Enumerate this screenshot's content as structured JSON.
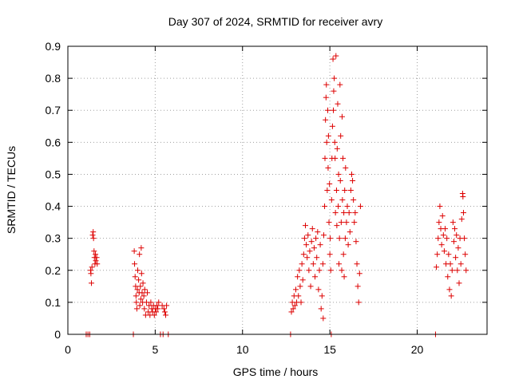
{
  "chart_data": {
    "type": "scatter",
    "title": "Day 307 of 2024, SRMTID for receiver avry",
    "xlabel": "GPS time / hours",
    "ylabel": "SRMTID / TECUs",
    "xlim": [
      0,
      24
    ],
    "ylim": [
      0,
      0.9
    ],
    "xticks": [
      0,
      5,
      10,
      15,
      20
    ],
    "xtick_labels": [
      "0",
      "5",
      "10",
      "15",
      "20"
    ],
    "yticks": [
      0,
      0.1,
      0.2,
      0.3,
      0.4,
      0.5,
      0.6,
      0.7,
      0.8,
      0.9
    ],
    "ytick_labels": [
      "0",
      "0.1",
      "0.2",
      "0.3",
      "0.4",
      "0.5",
      "0.6",
      "0.7",
      "0.8",
      "0.9"
    ],
    "grid": true,
    "marker": "+",
    "color": "#dd0000",
    "series": [
      {
        "name": "avry",
        "points": [
          [
            1.05,
            0
          ],
          [
            1.15,
            0
          ],
          [
            1.25,
            0
          ],
          [
            1.3,
            0.2
          ],
          [
            1.32,
            0.19
          ],
          [
            1.35,
            0.16
          ],
          [
            1.38,
            0.21
          ],
          [
            1.42,
            0.31
          ],
          [
            1.45,
            0.32
          ],
          [
            1.47,
            0.3
          ],
          [
            1.5,
            0.26
          ],
          [
            1.52,
            0.24
          ],
          [
            1.55,
            0.22
          ],
          [
            1.58,
            0.25
          ],
          [
            1.6,
            0.23
          ],
          [
            1.65,
            0.24
          ],
          [
            1.68,
            0.22
          ],
          [
            3.75,
            0
          ],
          [
            3.8,
            0.26
          ],
          [
            3.82,
            0.22
          ],
          [
            3.85,
            0.18
          ],
          [
            3.88,
            0.15
          ],
          [
            3.9,
            0.12
          ],
          [
            3.92,
            0.1
          ],
          [
            3.95,
            0.08
          ],
          [
            3.98,
            0.14
          ],
          [
            4.0,
            0.2
          ],
          [
            4.05,
            0.17
          ],
          [
            4.08,
            0.13
          ],
          [
            4.1,
            0.25
          ],
          [
            4.12,
            0.09
          ],
          [
            4.15,
            0.15
          ],
          [
            4.18,
            0.11
          ],
          [
            4.2,
            0.27
          ],
          [
            4.22,
            0.19
          ],
          [
            4.25,
            0.13
          ],
          [
            4.28,
            0.1
          ],
          [
            4.3,
            0.16
          ],
          [
            4.35,
            0.12
          ],
          [
            4.38,
            0.08
          ],
          [
            4.4,
            0.14
          ],
          [
            4.45,
            0.06
          ],
          [
            4.5,
            0.1
          ],
          [
            4.55,
            0.13
          ],
          [
            4.6,
            0.07
          ],
          [
            4.65,
            0.09
          ],
          [
            4.7,
            0.06
          ],
          [
            4.75,
            0.1
          ],
          [
            4.8,
            0.08
          ],
          [
            4.85,
            0.07
          ],
          [
            4.9,
            0.09
          ],
          [
            4.95,
            0.06
          ],
          [
            5.0,
            0.08
          ],
          [
            5.05,
            0.07
          ],
          [
            5.1,
            0.09
          ],
          [
            5.15,
            0.08
          ],
          [
            5.2,
            0.1
          ],
          [
            5.3,
            0
          ],
          [
            5.4,
            0.09
          ],
          [
            5.45,
            0
          ],
          [
            5.5,
            0.08
          ],
          [
            5.55,
            0.07
          ],
          [
            5.6,
            0.06
          ],
          [
            5.65,
            0.09
          ],
          [
            5.75,
            0
          ],
          [
            12.75,
            0
          ],
          [
            12.8,
            0.07
          ],
          [
            12.85,
            0.1
          ],
          [
            12.9,
            0.08
          ],
          [
            12.95,
            0.12
          ],
          [
            13.0,
            0.09
          ],
          [
            13.05,
            0.14
          ],
          [
            13.1,
            0.1
          ],
          [
            13.15,
            0.18
          ],
          [
            13.2,
            0.12
          ],
          [
            13.25,
            0.2
          ],
          [
            13.3,
            0.15
          ],
          [
            13.35,
            0.1
          ],
          [
            13.4,
            0.22
          ],
          [
            13.45,
            0.17
          ],
          [
            13.5,
            0.25
          ],
          [
            13.55,
            0.3
          ],
          [
            13.6,
            0.34
          ],
          [
            13.65,
            0.28
          ],
          [
            13.7,
            0.24
          ],
          [
            13.75,
            0.31
          ],
          [
            13.8,
            0.2
          ],
          [
            13.85,
            0.26
          ],
          [
            13.9,
            0.15
          ],
          [
            13.95,
            0.29
          ],
          [
            14.0,
            0.33
          ],
          [
            14.05,
            0.22
          ],
          [
            14.1,
            0.27
          ],
          [
            14.15,
            0.18
          ],
          [
            14.2,
            0.3
          ],
          [
            14.25,
            0.24
          ],
          [
            14.3,
            0.32
          ],
          [
            14.35,
            0.14
          ],
          [
            14.4,
            0.2
          ],
          [
            14.45,
            0.28
          ],
          [
            14.5,
            0.08
          ],
          [
            14.55,
            0.12
          ],
          [
            14.6,
            0.22
          ],
          [
            14.62,
            0.05
          ],
          [
            14.65,
            0.31
          ],
          [
            14.7,
            0.4
          ],
          [
            14.72,
            0.55
          ],
          [
            14.75,
            0.67
          ],
          [
            14.78,
            0.74
          ],
          [
            14.8,
            0.78
          ],
          [
            14.82,
            0.6
          ],
          [
            14.85,
            0.45
          ],
          [
            14.88,
            0.7
          ],
          [
            14.9,
            0.52
          ],
          [
            14.92,
            0.62
          ],
          [
            14.95,
            0.35
          ],
          [
            14.98,
            0.47
          ],
          [
            15.0,
            0.25
          ],
          [
            15.02,
            0.3
          ],
          [
            15.05,
            0.2
          ],
          [
            15.08,
            0
          ],
          [
            15.1,
            0.42
          ],
          [
            15.12,
            0.55
          ],
          [
            15.15,
            0.65
          ],
          [
            15.18,
            0.86
          ],
          [
            15.2,
            0.7
          ],
          [
            15.22,
            0.76
          ],
          [
            15.25,
            0.8
          ],
          [
            15.28,
            0.6
          ],
          [
            15.3,
            0.55
          ],
          [
            15.32,
            0.38
          ],
          [
            15.35,
            0.87
          ],
          [
            15.38,
            0.45
          ],
          [
            15.4,
            0.34
          ],
          [
            15.42,
            0.58
          ],
          [
            15.45,
            0.72
          ],
          [
            15.48,
            0.4
          ],
          [
            15.5,
            0.5
          ],
          [
            15.52,
            0.22
          ],
          [
            15.55,
            0.3
          ],
          [
            15.58,
            0.78
          ],
          [
            15.6,
            0.48
          ],
          [
            15.62,
            0.62
          ],
          [
            15.65,
            0.35
          ],
          [
            15.68,
            0.2
          ],
          [
            15.7,
            0.68
          ],
          [
            15.72,
            0.42
          ],
          [
            15.75,
            0.55
          ],
          [
            15.78,
            0.25
          ],
          [
            15.8,
            0.38
          ],
          [
            15.82,
            0.18
          ],
          [
            15.85,
            0.45
          ],
          [
            15.88,
            0.3
          ],
          [
            15.9,
            0.52
          ],
          [
            15.95,
            0.35
          ],
          [
            16.0,
            0.4
          ],
          [
            16.05,
            0.28
          ],
          [
            16.1,
            0.38
          ],
          [
            16.15,
            0.32
          ],
          [
            16.2,
            0.45
          ],
          [
            16.25,
            0.5
          ],
          [
            16.3,
            0.48
          ],
          [
            16.35,
            0.42
          ],
          [
            16.4,
            0.35
          ],
          [
            16.45,
            0.38
          ],
          [
            16.5,
            0.29
          ],
          [
            16.55,
            0.22
          ],
          [
            16.6,
            0.15
          ],
          [
            16.65,
            0.1
          ],
          [
            16.7,
            0.19
          ],
          [
            16.75,
            0.4
          ],
          [
            21.05,
            0
          ],
          [
            21.1,
            0.21
          ],
          [
            21.15,
            0.25
          ],
          [
            21.2,
            0.3
          ],
          [
            21.25,
            0.35
          ],
          [
            21.3,
            0.4
          ],
          [
            21.35,
            0.33
          ],
          [
            21.4,
            0.28
          ],
          [
            21.45,
            0.37
          ],
          [
            21.5,
            0.31
          ],
          [
            21.55,
            0.26
          ],
          [
            21.6,
            0.33
          ],
          [
            21.65,
            0.22
          ],
          [
            21.7,
            0.3
          ],
          [
            21.75,
            0.18
          ],
          [
            21.8,
            0.25
          ],
          [
            21.85,
            0.14
          ],
          [
            21.9,
            0.22
          ],
          [
            21.95,
            0.12
          ],
          [
            22.0,
            0.2
          ],
          [
            22.05,
            0.35
          ],
          [
            22.1,
            0.29
          ],
          [
            22.15,
            0.33
          ],
          [
            22.2,
            0.24
          ],
          [
            22.25,
            0.31
          ],
          [
            22.3,
            0.2
          ],
          [
            22.35,
            0.27
          ],
          [
            22.4,
            0.16
          ],
          [
            22.45,
            0.3
          ],
          [
            22.5,
            0.22
          ],
          [
            22.55,
            0.36
          ],
          [
            22.6,
            0.44
          ],
          [
            22.62,
            0.43
          ],
          [
            22.65,
            0.38
          ],
          [
            22.7,
            0.3
          ],
          [
            22.75,
            0.25
          ],
          [
            22.8,
            0.2
          ]
        ]
      }
    ]
  }
}
